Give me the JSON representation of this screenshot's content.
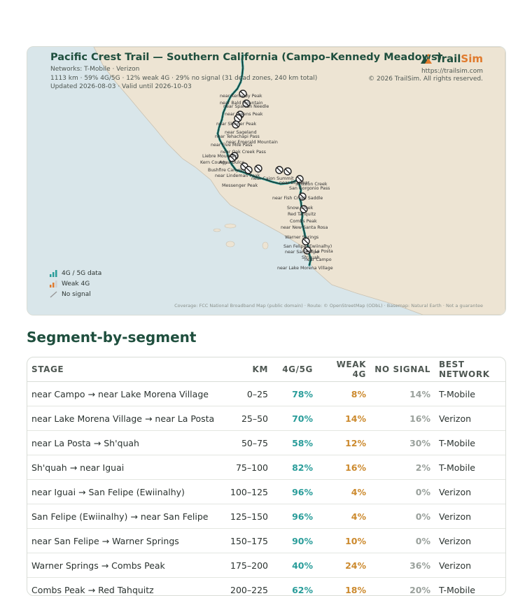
{
  "map": {
    "title": "Pacific Crest Trail — Southern California (Campo–Kennedy Meadows)",
    "networks_line": "Networks: T-Mobile · Verizon",
    "stats_line": "1113 km · 59% 4G/5G · 12% weak 4G · 29% no signal (31 dead zones, 240 km total)",
    "updated_line": "Updated 2026-08-03 · Valid until 2026-10-03",
    "brand": {
      "name_main": "Trail",
      "name_accent": "Sim",
      "url": "https://trailsim.com",
      "copyright": "© 2026 TrailSim. All rights reserved."
    },
    "legend": [
      {
        "label": "4G / 5G data",
        "icon": "signal-bars-strong-icon",
        "color": "#2a9d9a"
      },
      {
        "label": "Weak 4G",
        "icon": "signal-bars-weak-icon",
        "color": "#e07a2d"
      },
      {
        "label": "No signal",
        "icon": "no-signal-icon",
        "color": "#999999"
      }
    ],
    "attribution": "Coverage: FCC National Broadband Map (public domain) · Route: © OpenStreetMap (ODbL) · Basemap: Natural Earth · Not a guarantee",
    "place_labels": [
      "near Kennedy Peak",
      "near Bald Mountain",
      "near Spanish Needle",
      "near Owens Peak",
      "near Skinner Peak",
      "near Sageland",
      "near Tehachapi Pass",
      "near Emerald Mountain",
      "near Five Mile Pass",
      "near Oak Creek Pass",
      "Liebre Mountain",
      "Kern County",
      "Agua Dulce",
      "Bushfire Canyon",
      "near Lindeman Peak",
      "Messenger Peak",
      "near Cajon Summit",
      "near Big Bear",
      "Mission Creek",
      "near Fish Creek Saddle",
      "San Gorgonio Pass",
      "Snow Creek",
      "Red Tahquitz",
      "Combs Peak",
      "near New Santa Rosa",
      "Warner Springs",
      "near San Felipe",
      "San Felipe (Ewiinalhy)",
      "near La Posta",
      "Sh'quah",
      "near Campo",
      "near Lake Morena Village"
    ],
    "accent_good": "#2a9d9a",
    "accent_weak": "#e07a2d",
    "land_color": "#ede4d3",
    "water_color": "#d9e6ea"
  },
  "section_title": "Segment-by-segment",
  "table": {
    "headers": [
      "STAGE",
      "KM",
      "4G/5G",
      "WEAK 4G",
      "NO SIGNAL",
      "BEST NETWORK"
    ],
    "rows": [
      {
        "stage": "near Campo → near Lake Morena Village",
        "km": "0–25",
        "good": "78%",
        "weak": "8%",
        "none": "14%",
        "network": "T-Mobile"
      },
      {
        "stage": "near Lake Morena Village → near La Posta",
        "km": "25–50",
        "good": "70%",
        "weak": "14%",
        "none": "16%",
        "network": "Verizon"
      },
      {
        "stage": "near La Posta → Sh'quah",
        "km": "50–75",
        "good": "58%",
        "weak": "12%",
        "none": "30%",
        "network": "T-Mobile"
      },
      {
        "stage": "Sh'quah → near Iguai",
        "km": "75–100",
        "good": "82%",
        "weak": "16%",
        "none": "2%",
        "network": "T-Mobile"
      },
      {
        "stage": "near Iguai → San Felipe (Ewiinalhy)",
        "km": "100–125",
        "good": "96%",
        "weak": "4%",
        "none": "0%",
        "network": "Verizon"
      },
      {
        "stage": "San Felipe (Ewiinalhy) → near San Felipe",
        "km": "125–150",
        "good": "96%",
        "weak": "4%",
        "none": "0%",
        "network": "Verizon"
      },
      {
        "stage": "near San Felipe → Warner Springs",
        "km": "150–175",
        "good": "90%",
        "weak": "10%",
        "none": "0%",
        "network": "Verizon"
      },
      {
        "stage": "Warner Springs → Combs Peak",
        "km": "175–200",
        "good": "40%",
        "weak": "24%",
        "none": "36%",
        "network": "Verizon"
      },
      {
        "stage": "Combs Peak → Red Tahquitz",
        "km": "200–225",
        "good": "62%",
        "weak": "18%",
        "none": "20%",
        "network": "T-Mobile"
      }
    ]
  }
}
